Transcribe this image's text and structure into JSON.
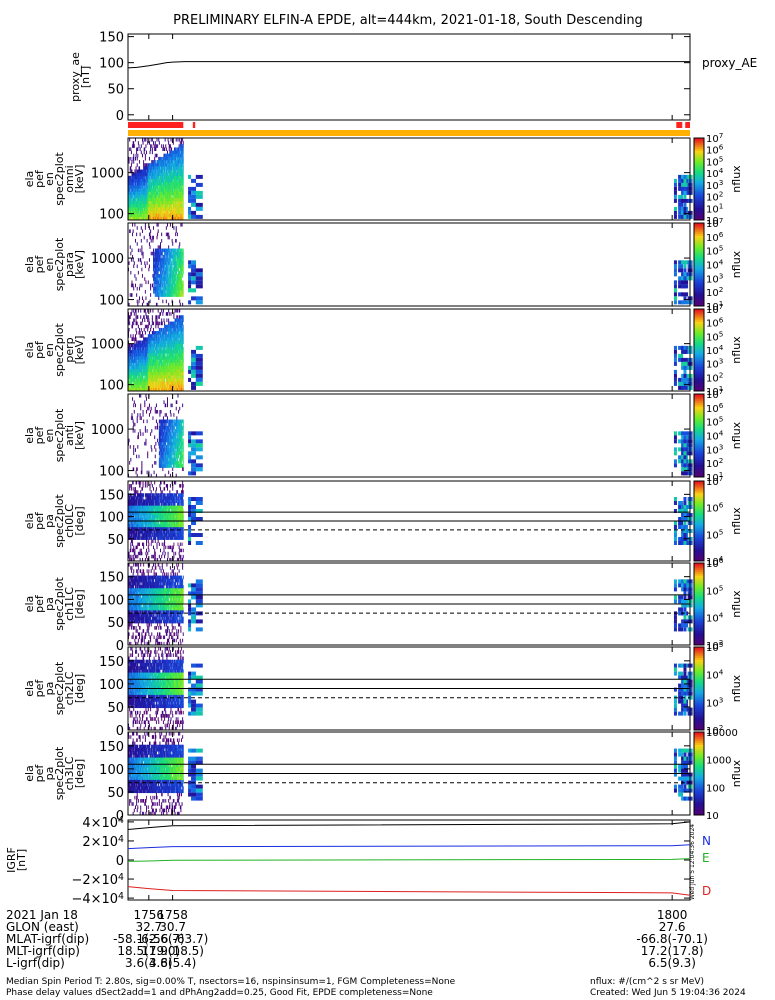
{
  "title": "PRELIMINARY ELFIN-A EPDE, alt=444km, 2021-01-18, South Descending",
  "stamp": "Wed Jun  5 12:04:36 2024",
  "colors": {
    "axis": "#000000",
    "N": "#1a2ee0",
    "E": "#22b022",
    "D": "#dd2020",
    "bar_red": "#ff2020",
    "bar_orange": "#ffb000"
  },
  "chart_data": [
    {
      "id": "proxy_ae",
      "type": "line",
      "ylabel": [
        "proxy_ae",
        "[nT]"
      ],
      "ylim": [
        -10,
        155
      ],
      "yticks": [
        "0",
        "50",
        "100",
        "150"
      ],
      "ytick_values": [
        0,
        50,
        100,
        150
      ],
      "legend": "proxy_AE",
      "x": [
        1754.25,
        1755.0,
        1756.0,
        1757.0,
        1757.5,
        1758.0,
        1759.0,
        1800.0,
        1801.5
      ],
      "y": [
        90,
        91,
        94,
        98,
        100,
        101,
        102,
        102,
        102
      ]
    },
    {
      "id": "pef_en_1",
      "type": "heatmap",
      "ylabel": [
        "ela",
        "pef",
        "en",
        "spec2plot",
        "omni",
        "[keV]"
      ],
      "yscale": "log",
      "yticks": [
        "100",
        "1000"
      ],
      "ytick_values": [
        100,
        1000
      ],
      "colorbar": {
        "label": "nflux",
        "scale": "log",
        "ticks": [
          "10",
          "10^1",
          "10^2",
          "10^3",
          "10^4",
          "10^5",
          "10^6",
          "10^7"
        ]
      }
    },
    {
      "id": "pef_en_2",
      "type": "heatmap",
      "ylabel": [
        "ela",
        "pef",
        "en",
        "spec2plot",
        "para",
        "[keV]"
      ],
      "yscale": "log",
      "yticks": [
        "100",
        "1000"
      ],
      "ytick_values": [
        100,
        1000
      ],
      "colorbar": {
        "label": "nflux",
        "scale": "log",
        "ticks": [
          "10^1",
          "10^2",
          "10^3",
          "10^4",
          "10^5",
          "10^6",
          "10^7"
        ]
      }
    },
    {
      "id": "pef_en_3",
      "type": "heatmap",
      "ylabel": [
        "ela",
        "pef",
        "en",
        "spec2plot",
        "perp",
        "[keV]"
      ],
      "yscale": "log",
      "yticks": [
        "100",
        "1000"
      ],
      "ytick_values": [
        100,
        1000
      ],
      "colorbar": {
        "label": "nflux",
        "scale": "log",
        "ticks": [
          "10^1",
          "10^2",
          "10^3",
          "10^4",
          "10^5",
          "10^6",
          "10^7"
        ]
      }
    },
    {
      "id": "pef_en_4",
      "type": "heatmap",
      "ylabel": [
        "ela",
        "pef",
        "en",
        "spec2plot",
        "anti",
        "[keV]"
      ],
      "yscale": "log",
      "yticks": [
        "100",
        "1000"
      ],
      "ytick_values": [
        100,
        1000
      ],
      "colorbar": {
        "label": "nflux",
        "scale": "log",
        "ticks": [
          "10^1",
          "10^2",
          "10^3",
          "10^4",
          "10^5",
          "10^6",
          "10^7"
        ]
      }
    },
    {
      "id": "pef_pa_ch0",
      "type": "heatmap",
      "ylabel": [
        "ela",
        "pef",
        "pa",
        "spec2plot",
        "ch0LC",
        "[deg]"
      ],
      "ylim": [
        0,
        180
      ],
      "yticks": [
        "50",
        "100",
        "150"
      ],
      "ytick_values": [
        50,
        100,
        150
      ],
      "colorbar": {
        "label": "nflux",
        "scale": "log",
        "ticks": [
          "10^4",
          "10^5",
          "10^6",
          "10^7"
        ]
      }
    },
    {
      "id": "pef_pa_ch1",
      "type": "heatmap",
      "ylabel": [
        "ela",
        "pef",
        "pa",
        "spec2plot",
        "ch1LC",
        "[deg]"
      ],
      "ylim": [
        0,
        180
      ],
      "yticks": [
        "0",
        "50",
        "100",
        "150"
      ],
      "ytick_values": [
        0,
        50,
        100,
        150
      ],
      "colorbar": {
        "label": "nflux",
        "scale": "log",
        "ticks": [
          "10^3",
          "10^4",
          "10^5",
          "10^6"
        ]
      }
    },
    {
      "id": "pef_pa_ch2",
      "type": "heatmap",
      "ylabel": [
        "ela",
        "pef",
        "pa",
        "spec2plot",
        "ch2LC",
        "[deg]"
      ],
      "ylim": [
        0,
        180
      ],
      "yticks": [
        "0",
        "50",
        "100",
        "150"
      ],
      "ytick_values": [
        0,
        50,
        100,
        150
      ],
      "colorbar": {
        "label": "nflux",
        "scale": "log",
        "ticks": [
          "10^2",
          "10^3",
          "10^4",
          "10^5"
        ]
      }
    },
    {
      "id": "pef_pa_ch3",
      "type": "heatmap",
      "ylabel": [
        "ela",
        "pef",
        "pa",
        "spec2plot",
        "ch3LC",
        "[deg]"
      ],
      "ylim": [
        0,
        180
      ],
      "yticks": [
        "0",
        "50",
        "100",
        "150"
      ],
      "ytick_values": [
        0,
        50,
        100,
        150
      ],
      "colorbar": {
        "label": "nflux",
        "scale": "log",
        "ticks": [
          "10",
          "100",
          "1000",
          "10000"
        ]
      }
    },
    {
      "id": "igrf",
      "type": "line",
      "ylabel": [
        "IGRF",
        "[nT]"
      ],
      "ylim": [
        -42000,
        42000
      ],
      "yticks": [
        "4×10^4",
        "2×10^4",
        "0",
        "−2×10^4",
        "−4×10^4"
      ],
      "ytick_values": [
        40000,
        20000,
        0,
        -20000,
        -40000
      ],
      "legend": [
        "N",
        "E",
        "D"
      ],
      "series": [
        {
          "name": "N",
          "x": [
            1754.25,
            1756.0,
            1758.0,
            1800.0,
            1801.5
          ],
          "y": [
            12000,
            13000,
            14000,
            15000,
            16000
          ]
        },
        {
          "name": "E",
          "x": [
            1754.25,
            1756.0,
            1758.0,
            1800.0,
            1801.5
          ],
          "y": [
            -1500,
            -1000,
            -200,
            600,
            1500
          ]
        },
        {
          "name": "D",
          "x": [
            1754.25,
            1756.0,
            1758.0,
            1800.0,
            1801.5
          ],
          "y": [
            -28000,
            -30000,
            -32000,
            -34500,
            -37000
          ]
        },
        {
          "name": "total",
          "x": [
            1754.25,
            1756.0,
            1758.0,
            1800.0,
            1801.5
          ],
          "y": [
            32000,
            34000,
            36000,
            38000,
            40000
          ]
        }
      ]
    }
  ],
  "xaxis": {
    "ticks": [
      "1756",
      "1758",
      "1800"
    ],
    "tick_values": [
      1756,
      1758,
      1800
    ],
    "xlim": [
      1754.25,
      1801.5
    ],
    "date": "2021 Jan 18"
  },
  "ephemeris": {
    "labels": [
      "2021 Jan 18",
      "GLON (east)",
      "MLAT-igrf(dip)",
      "MLT-igrf(dip)",
      "L-igrf(dip)"
    ],
    "rows": [
      [
        "1756",
        "1758",
        "1800"
      ],
      [
        "32.7",
        "30.7",
        "27.6"
      ],
      [
        "-58.1(-56.7)",
        "-62.6(-63.7)",
        "-66.8(-70.1)"
      ],
      [
        "18.5(19.0)",
        "17.9(18.5)",
        "17.2(17.8)"
      ],
      [
        "3.6(3.6)",
        "4.8(5.4)",
        "6.5(9.3)"
      ]
    ]
  },
  "footer": {
    "line1": "Median Spin Period T: 2.80s, sig=0.00% T, nsectors=16, nspinsinsum=1, FGM Completeness=None",
    "line2": "Phase delay values dSect2add=1 and dPhAng2add=0.25, Good Fit, EPDE completeness=None",
    "units": "nflux: #/(cm^2 s sr MeV)",
    "created": "Created: Wed Jun  5 19:04:36 2024"
  }
}
